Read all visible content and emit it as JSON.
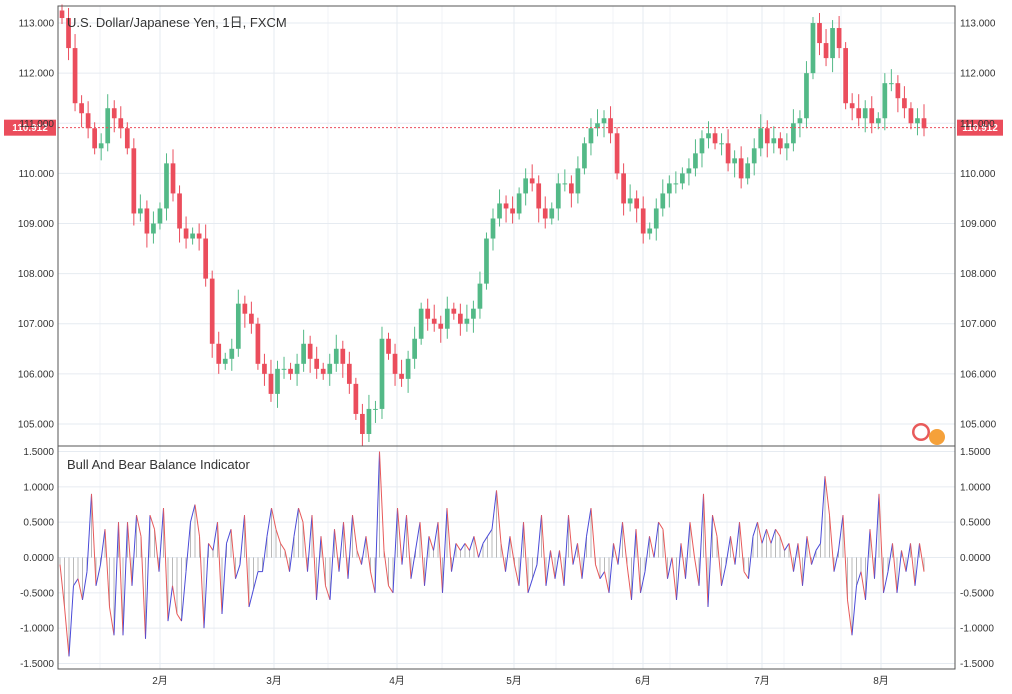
{
  "chart_data": [
    {
      "type": "candlestick",
      "title": "U.S. Dollar/Japanese Yen, 1日, FXCM",
      "ylim": [
        104.6,
        113.3
      ],
      "y_ticks": [
        "113.000",
        "112.000",
        "111.000",
        "110.000",
        "109.000",
        "108.000",
        "107.000",
        "106.000",
        "105.000"
      ],
      "x_ticks": [
        "2月",
        "3月",
        "4月",
        "5月",
        "6月",
        "7月",
        "8月"
      ],
      "last_price": "110.912",
      "up_color": "#53b987",
      "down_color": "#eb4d5c",
      "closes": [
        113.1,
        112.5,
        111.4,
        111.2,
        110.9,
        110.5,
        110.6,
        111.3,
        111.1,
        110.9,
        110.5,
        109.2,
        109.3,
        108.8,
        109.0,
        109.3,
        110.2,
        109.6,
        108.9,
        108.7,
        108.8,
        108.7,
        107.9,
        106.6,
        106.2,
        106.3,
        106.5,
        107.4,
        107.2,
        107.0,
        106.2,
        106.0,
        105.6,
        106.1,
        106.1,
        106.0,
        106.2,
        106.6,
        106.3,
        106.1,
        106.0,
        106.2,
        106.5,
        106.2,
        105.8,
        105.2,
        104.8,
        105.3,
        105.3,
        106.7,
        106.4,
        106.0,
        105.9,
        106.3,
        106.7,
        107.3,
        107.1,
        107.0,
        106.9,
        107.3,
        107.2,
        107.0,
        107.1,
        107.3,
        107.8,
        108.7,
        109.1,
        109.4,
        109.3,
        109.2,
        109.6,
        109.9,
        109.8,
        109.3,
        109.1,
        109.3,
        109.8,
        109.8,
        109.6,
        110.1,
        110.6,
        110.9,
        111.0,
        111.1,
        110.8,
        110.0,
        109.4,
        109.5,
        109.3,
        108.8,
        108.9,
        109.3,
        109.6,
        109.8,
        109.8,
        110.0,
        110.1,
        110.4,
        110.7,
        110.8,
        110.6,
        110.6,
        110.2,
        110.3,
        109.9,
        110.2,
        110.5,
        110.9,
        110.6,
        110.7,
        110.5,
        110.6,
        111.0,
        111.1,
        112.0,
        113.0,
        112.6,
        112.3,
        112.9,
        112.5,
        111.4,
        111.3,
        111.1,
        111.3,
        111.0,
        111.1,
        111.8,
        111.8,
        111.5,
        111.3,
        111.0,
        111.1,
        110.9
      ]
    },
    {
      "type": "line",
      "title": "Bull And Bear Balance Indicator",
      "ylim": [
        -1.55,
        1.55
      ],
      "y_ticks": [
        "1.5000",
        "1.0000",
        "0.5000",
        "0.0000",
        "-0.5000",
        "-1.0000",
        "-1.5000"
      ],
      "bull_color": "#4a4ad8",
      "bear_color": "#e85a5a",
      "values": [
        -0.1,
        -0.7,
        -1.4,
        -0.4,
        -0.3,
        -0.6,
        -0.2,
        0.9,
        -0.4,
        -0.1,
        0.4,
        -0.7,
        -1.1,
        0.5,
        -1.1,
        0.5,
        -0.4,
        0.6,
        0.3,
        -1.15,
        0.6,
        0.4,
        -0.2,
        0.7,
        -0.9,
        -0.4,
        -0.8,
        -0.9,
        -0.2,
        0.5,
        0.75,
        0.3,
        -1.0,
        0.2,
        0.1,
        0.5,
        -0.8,
        0.2,
        0.4,
        -0.3,
        -0.1,
        0.6,
        -0.7,
        -0.45,
        -0.2,
        -0.2,
        0.3,
        0.7,
        0.4,
        0.2,
        0.1,
        -0.2,
        0.3,
        0.7,
        0.5,
        -0.2,
        0.6,
        -0.6,
        0.3,
        -0.4,
        -0.6,
        0.4,
        -0.2,
        0.5,
        -0.3,
        0.6,
        0.1,
        -0.1,
        0.3,
        -0.2,
        -0.5,
        1.5,
        0.1,
        -0.4,
        -0.5,
        0.7,
        -0.1,
        0.6,
        -0.3,
        0.1,
        0.5,
        -0.4,
        0.3,
        0.1,
        0.5,
        -0.5,
        0.7,
        -0.2,
        0.2,
        0.1,
        0.2,
        0.1,
        0.3,
        0.0,
        0.2,
        0.3,
        0.4,
        0.95,
        0.2,
        -0.2,
        0.3,
        -0.1,
        -0.4,
        0.5,
        -0.5,
        -0.3,
        -0.1,
        0.6,
        -0.4,
        0.1,
        -0.3,
        0.1,
        -0.4,
        0.6,
        -0.1,
        0.2,
        -0.3,
        0.3,
        0.7,
        -0.1,
        -0.3,
        -0.2,
        -0.5,
        0.2,
        -0.1,
        0.5,
        -0.1,
        -0.6,
        0.4,
        -0.5,
        -0.2,
        0.3,
        0.0,
        0.5,
        0.4,
        -0.3,
        0.0,
        -0.6,
        0.2,
        -0.3,
        0.5,
        0.0,
        -0.4,
        0.9,
        -0.7,
        0.6,
        0.3,
        -0.4,
        -0.1,
        0.3,
        -0.1,
        0.5,
        -0.2,
        -0.3,
        0.3,
        0.5,
        0.2,
        0.4,
        0.2,
        0.4,
        0.3,
        0.1,
        0.2,
        -0.2,
        0.2,
        -0.4,
        0.3,
        -0.1,
        0.1,
        0.2,
        1.15,
        0.6,
        -0.2,
        0.1,
        0.6,
        -0.6,
        -1.1,
        -0.4,
        -0.2,
        -0.6,
        0.4,
        -0.3,
        0.9,
        -0.5,
        -0.2,
        0.2,
        -0.5,
        0.1,
        -0.2,
        0.2,
        -0.4,
        0.2,
        -0.2
      ]
    }
  ]
}
